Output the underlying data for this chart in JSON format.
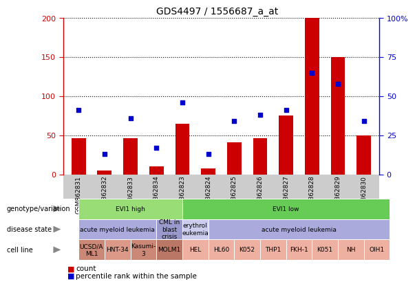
{
  "title": "GDS4497 / 1556687_a_at",
  "samples": [
    "GSM862831",
    "GSM862832",
    "GSM862833",
    "GSM862834",
    "GSM862823",
    "GSM862824",
    "GSM862825",
    "GSM862826",
    "GSM862827",
    "GSM862828",
    "GSM862829",
    "GSM862830"
  ],
  "counts": [
    46,
    5,
    46,
    10,
    65,
    8,
    41,
    46,
    75,
    200,
    150,
    50
  ],
  "percentiles": [
    41,
    13,
    36,
    17,
    46,
    13,
    34,
    38,
    41,
    65,
    58,
    34
  ],
  "ylim_left": [
    0,
    200
  ],
  "ylim_right": [
    0,
    100
  ],
  "yticks_left": [
    0,
    50,
    100,
    150,
    200
  ],
  "yticks_right": [
    0,
    25,
    50,
    75,
    100
  ],
  "ytick_labels_left": [
    "0",
    "50",
    "100",
    "150",
    "200"
  ],
  "ytick_labels_right": [
    "0",
    "25",
    "50",
    "75",
    "100%"
  ],
  "bar_color": "#cc0000",
  "dot_color": "#0000cc",
  "bg_color": "#ffffff",
  "xtick_bg": "#cccccc",
  "genotype_row": {
    "label": "genotype/variation",
    "groups": [
      {
        "text": "EVI1 high",
        "start": 0,
        "end": 4,
        "color": "#99dd77"
      },
      {
        "text": "EVI1 low",
        "start": 4,
        "end": 12,
        "color": "#66cc55"
      }
    ]
  },
  "disease_row": {
    "label": "disease state",
    "groups": [
      {
        "text": "acute myeloid leukemia",
        "start": 0,
        "end": 3,
        "color": "#aaaadd"
      },
      {
        "text": "CML in\nblast\ncrisis",
        "start": 3,
        "end": 4,
        "color": "#9999cc"
      },
      {
        "text": "erythrol\neukemia",
        "start": 4,
        "end": 5,
        "color": "#ccccee"
      },
      {
        "text": "acute myeloid leukemia",
        "start": 5,
        "end": 12,
        "color": "#aaaadd"
      }
    ]
  },
  "cell_row": {
    "label": "cell line",
    "groups": [
      {
        "text": "UCSD/A\nML1",
        "start": 0,
        "end": 1,
        "color": "#cc8877"
      },
      {
        "text": "HNT-34",
        "start": 1,
        "end": 2,
        "color": "#dd9988"
      },
      {
        "text": "Kasumi-\n3",
        "start": 2,
        "end": 3,
        "color": "#cc8877"
      },
      {
        "text": "MOLM1",
        "start": 3,
        "end": 4,
        "color": "#bb7766"
      },
      {
        "text": "HEL",
        "start": 4,
        "end": 5,
        "color": "#eeb0a0"
      },
      {
        "text": "HL60",
        "start": 5,
        "end": 6,
        "color": "#eeb0a0"
      },
      {
        "text": "K052",
        "start": 6,
        "end": 7,
        "color": "#eeb0a0"
      },
      {
        "text": "THP1",
        "start": 7,
        "end": 8,
        "color": "#eeb0a0"
      },
      {
        "text": "FKH-1",
        "start": 8,
        "end": 9,
        "color": "#eeb0a0"
      },
      {
        "text": "K051",
        "start": 9,
        "end": 10,
        "color": "#eeb0a0"
      },
      {
        "text": "NH",
        "start": 10,
        "end": 11,
        "color": "#eeb0a0"
      },
      {
        "text": "OIH1",
        "start": 11,
        "end": 12,
        "color": "#eeb0a0"
      }
    ]
  },
  "row_labels": [
    "genotype/variation",
    "disease state",
    "cell line"
  ],
  "legend_items": [
    {
      "color": "#cc0000",
      "label": "count"
    },
    {
      "color": "#0000cc",
      "label": "percentile rank within the sample"
    }
  ]
}
